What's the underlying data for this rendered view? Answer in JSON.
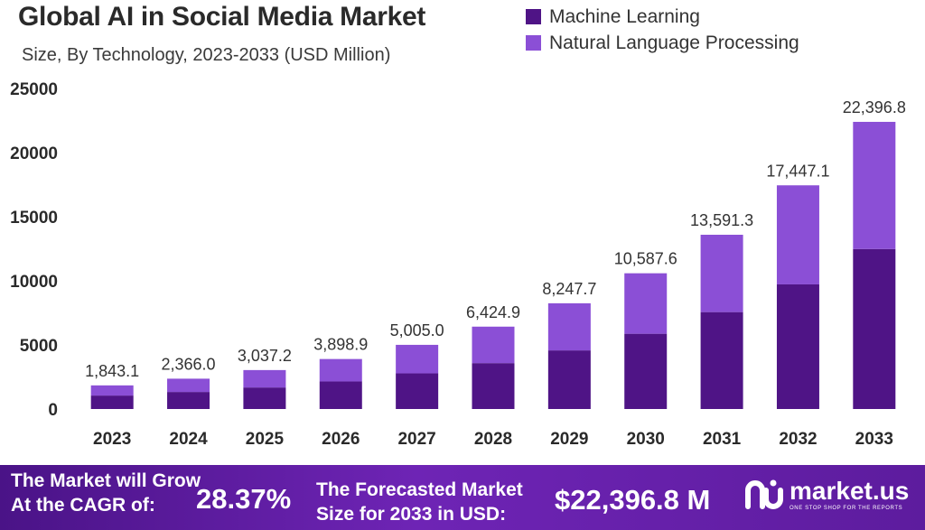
{
  "header": {
    "title": "Global AI in Social Media Market",
    "subtitle": "Size, By Technology, 2023-2033 (USD Million)"
  },
  "colors": {
    "machine_learning": "#4f1486",
    "nlp": "#8b4fd6",
    "footer_bg": "#5a1c9c"
  },
  "chart_data": {
    "type": "bar",
    "stacked": true,
    "categories": [
      "2023",
      "2024",
      "2025",
      "2026",
      "2027",
      "2028",
      "2029",
      "2030",
      "2031",
      "2032",
      "2033"
    ],
    "series": [
      {
        "name": "Machine Learning",
        "values": [
          1050,
          1330,
          1680,
          2150,
          2780,
          3580,
          4570,
          5870,
          7560,
          9720,
          12480
        ]
      },
      {
        "name": "Natural Language Processing",
        "values": [
          793.1,
          1036.0,
          1357.2,
          1748.9,
          2225.0,
          2844.9,
          3677.7,
          4717.6,
          6031.3,
          7727.1,
          9916.8
        ]
      }
    ],
    "totals": [
      1843.1,
      2366.0,
      3037.2,
      3898.9,
      5005.0,
      6424.9,
      8247.7,
      10587.6,
      13591.3,
      17447.1,
      22396.8
    ],
    "total_labels": [
      "1,843.1",
      "2,366.0",
      "3,037.2",
      "3,898.9",
      "5,005.0",
      "6,424.9",
      "8,247.7",
      "10,587.6",
      "13,591.3",
      "17,447.1",
      "22,396.8"
    ],
    "y_ticks": [
      0,
      5000,
      10000,
      15000,
      20000,
      25000
    ],
    "ylim": [
      0,
      25000
    ],
    "grid": false,
    "legend_position": "top-right",
    "xlabel": "",
    "ylabel": ""
  },
  "footer": {
    "cagr_label_line1": "The Market will Grow",
    "cagr_label_line2": "At the CAGR of:",
    "cagr_value": "28.37%",
    "forecast_label_line1": "The Forecasted Market",
    "forecast_label_line2": "Size for 2033 in USD:",
    "forecast_value": "$22,396.8 M",
    "brand_name": "market.us",
    "brand_tagline": "ONE STOP SHOP FOR THE REPORTS",
    "brand_icon": "market-us-logo-icon"
  }
}
